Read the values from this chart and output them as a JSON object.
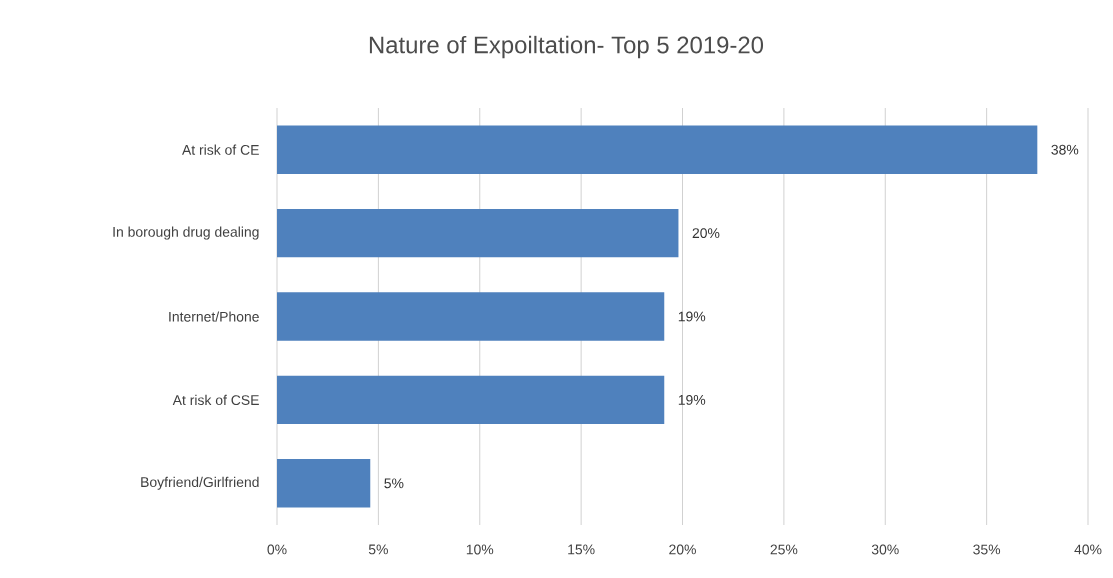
{
  "chart_data": {
    "type": "bar",
    "orientation": "horizontal",
    "title": "Nature of Expoiltation- Top 5 2019-20",
    "categories": [
      "At risk of CE",
      "In borough drug dealing",
      "Internet/Phone",
      "At risk of CSE",
      "Boyfriend/Girlfriend"
    ],
    "values": [
      37.5,
      19.8,
      19.1,
      19.1,
      4.6
    ],
    "value_labels": [
      "38%",
      "20%",
      "19%",
      "19%",
      "5%"
    ],
    "color": "#4f81bd",
    "xlim": [
      0,
      40
    ],
    "xticks": [
      {
        "value": 0,
        "label": "0%"
      },
      {
        "value": 5,
        "label": "5%"
      },
      {
        "value": 10,
        "label": "10%"
      },
      {
        "value": 15,
        "label": "15%"
      },
      {
        "value": 20,
        "label": "20%"
      },
      {
        "value": 25,
        "label": "25%"
      },
      {
        "value": 30,
        "label": "30%"
      },
      {
        "value": 35,
        "label": "35%"
      },
      {
        "value": 40,
        "label": "40%"
      }
    ],
    "grid": "x"
  }
}
